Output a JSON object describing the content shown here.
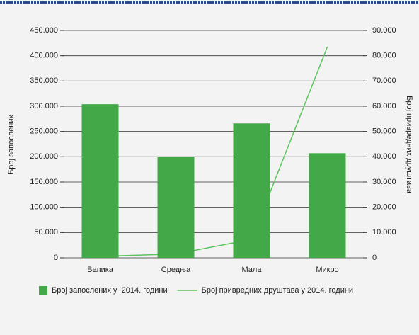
{
  "chart_data": {
    "type": "bar",
    "categories": [
      "Велика",
      "Средња",
      "Мала",
      "Микро"
    ],
    "series": [
      {
        "name": "Број запослених у  2014. години",
        "type": "bar",
        "color": "#43a847",
        "values": [
          304000,
          200000,
          266000,
          207000
        ]
      },
      {
        "name": "Број привредних друштава у 2014. години",
        "type": "line",
        "axis": "y2",
        "color": "#5cc45c",
        "values": [
          600,
          1500,
          7300,
          83500
        ]
      }
    ],
    "ylabel": "Број запослених",
    "y2label": "Број привредних друштава",
    "ylim": [
      0,
      450000
    ],
    "yticks": [
      0,
      {
        "value": 50000,
        "label": "50.000"
      },
      {
        "value": 100000,
        "label": "100.000"
      },
      {
        "value": 150000,
        "label": "150.000"
      },
      {
        "value": 200000,
        "label": "200.000"
      },
      {
        "value": 250000,
        "label": "250.000"
      },
      {
        "value": 300000,
        "label": "300.000"
      },
      {
        "value": 350000,
        "label": "350.000"
      },
      {
        "value": 400000,
        "label": "400.000"
      },
      {
        "value": 450000,
        "label": "450.000"
      }
    ],
    "y2lim": [
      0,
      90000
    ],
    "y2ticks": [
      0,
      {
        "value": 10000,
        "label": "10.000"
      },
      {
        "value": 20000,
        "label": "20.000"
      },
      {
        "value": 30000,
        "label": "30.000"
      },
      {
        "value": 40000,
        "label": "40.000"
      },
      {
        "value": 50000,
        "label": "50.000"
      },
      {
        "value": 60000,
        "label": "60.000"
      },
      {
        "value": 70000,
        "label": "70.000"
      },
      {
        "value": 80000,
        "label": "80.000"
      },
      {
        "value": 90000,
        "label": "90.000"
      }
    ],
    "grid": true,
    "legend": "bottom"
  }
}
